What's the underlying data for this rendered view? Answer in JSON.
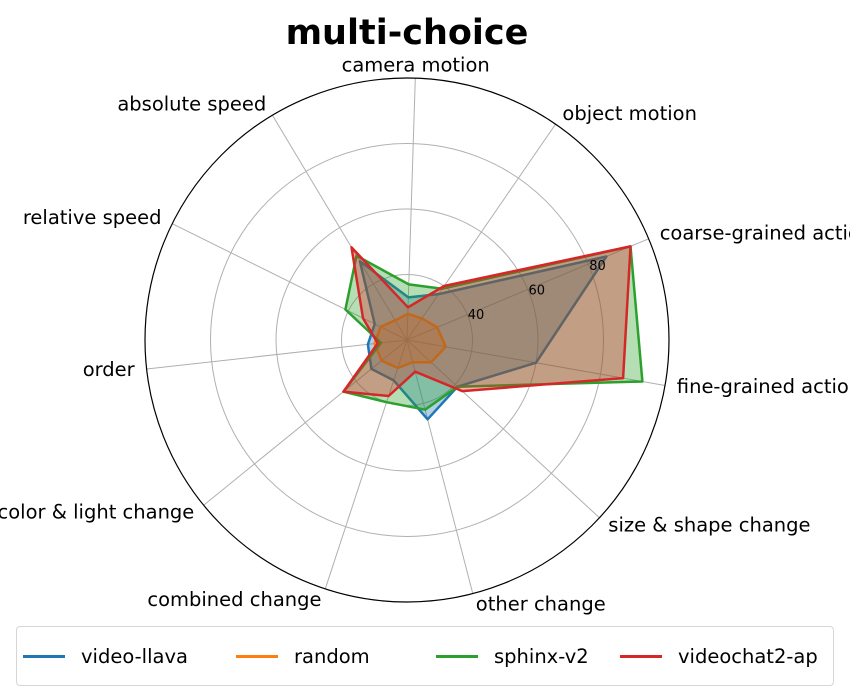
{
  "chart_data": {
    "type": "radar",
    "title": "multi-choice",
    "categories": [
      "fine-grained action",
      "coarse-grained action",
      "object motion",
      "camera motion",
      "absolute speed",
      "relative speed",
      "order",
      "color & light change",
      "combined change",
      "other change",
      "size & shape change"
    ],
    "radial_ticks": [
      "40",
      "60",
      "80"
    ],
    "rlim": [
      20,
      100
    ],
    "grid": true,
    "legend_position": "bottom",
    "series": [
      {
        "name": "video-llava",
        "color": "#1f77b4",
        "values": [
          60,
          86,
          37,
          33,
          48,
          31,
          32,
          34,
          33,
          45,
          41
        ]
      },
      {
        "name": "random",
        "color": "#ff7f0e",
        "values": [
          32,
          30,
          28,
          28,
          27,
          29,
          30,
          30,
          29,
          27,
          30
        ]
      },
      {
        "name": "sphinx-v2",
        "color": "#2ca02c",
        "values": [
          93,
          94,
          39,
          37,
          50,
          41,
          28,
          45,
          40,
          42,
          41
        ]
      },
      {
        "name": "videochat2-ap",
        "color": "#d62728",
        "values": [
          87,
          94,
          40,
          30,
          53,
          35,
          29,
          45,
          38,
          30,
          43
        ]
      }
    ]
  }
}
